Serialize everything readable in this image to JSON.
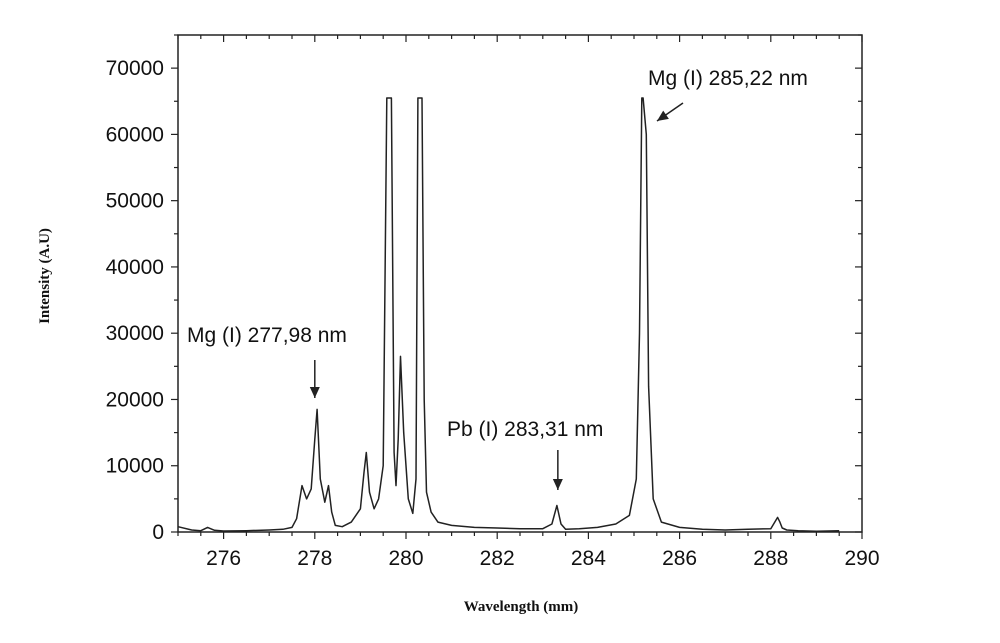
{
  "chart_data": {
    "type": "line",
    "title": "",
    "xlabel": "Wavelength (mm)",
    "ylabel": "Intensity (A.U)",
    "xlim": [
      275,
      290
    ],
    "ylim": [
      0,
      75000
    ],
    "xticks": [
      276,
      278,
      280,
      282,
      284,
      286,
      288,
      290
    ],
    "yticks": [
      0,
      10000,
      20000,
      30000,
      40000,
      50000,
      60000,
      70000
    ],
    "grid": false,
    "legend": "none",
    "line_color": "#222222",
    "series": [
      {
        "x": [
          275.0,
          275.3,
          275.5,
          275.65,
          275.8,
          276.0,
          276.5,
          277.0,
          277.3,
          277.5,
          277.6,
          277.72,
          277.82,
          277.92,
          278.0,
          278.05,
          278.12,
          278.22,
          278.3,
          278.37,
          278.45,
          278.6,
          278.8,
          279.0,
          279.08,
          279.13,
          279.2,
          279.3,
          279.4,
          279.5,
          279.58,
          279.62,
          279.68,
          279.74,
          279.78,
          279.83,
          279.88,
          279.95,
          280.05,
          280.15,
          280.22,
          280.26,
          280.3,
          280.35,
          280.4,
          280.45,
          280.55,
          280.7,
          281.0,
          281.5,
          282.0,
          282.5,
          283.0,
          283.2,
          283.31,
          283.4,
          283.5,
          283.8,
          284.2,
          284.6,
          284.9,
          285.05,
          285.12,
          285.17,
          285.2,
          285.27,
          285.32,
          285.42,
          285.6,
          286.0,
          286.5,
          287.0,
          287.5,
          288.0,
          288.15,
          288.2,
          288.25,
          288.35,
          288.6,
          289.0,
          289.5
        ],
        "y": [
          800,
          300,
          200,
          700,
          250,
          150,
          200,
          300,
          400,
          700,
          2000,
          7000,
          5000,
          6500,
          14000,
          18500,
          8000,
          4500,
          7000,
          3000,
          1000,
          800,
          1500,
          3500,
          9000,
          12000,
          6000,
          3500,
          5000,
          10000,
          65500,
          65500,
          65500,
          12000,
          7000,
          14000,
          26500,
          15000,
          5000,
          2800,
          8000,
          65500,
          65500,
          65500,
          20000,
          6000,
          3000,
          1500,
          1000,
          700,
          600,
          500,
          500,
          1200,
          4000,
          1200,
          400,
          500,
          700,
          1200,
          2500,
          8000,
          30000,
          65500,
          65500,
          60000,
          22000,
          5000,
          1500,
          700,
          400,
          300,
          400,
          500,
          2200,
          1500,
          600,
          300,
          200,
          100,
          200
        ]
      }
    ],
    "annotations": [
      {
        "text": "Mg (I) 277,98 nm"
      },
      {
        "text": "Pb (I) 283,31 nm"
      },
      {
        "text": "Mg (I) 285,22 nm"
      }
    ]
  }
}
